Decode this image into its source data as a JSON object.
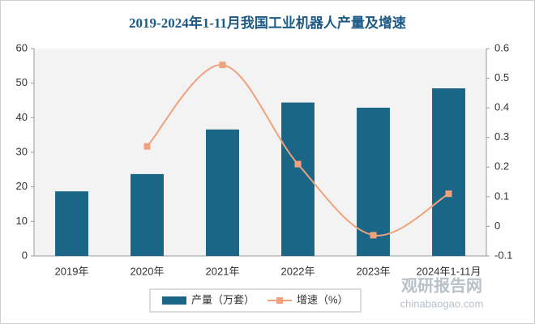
{
  "chart_data": {
    "type": "combo",
    "title": "2019-2024年1-11月我国工业机器人产量及增速",
    "categories": [
      "2019年",
      "2020年",
      "2021年",
      "2022年",
      "2023年",
      "2024年1-11月"
    ],
    "series": [
      {
        "name": "产量（万套）",
        "type": "bar",
        "color": "#1b6687",
        "values": [
          18.7,
          23.7,
          36.6,
          44.4,
          42.9,
          48.5
        ]
      },
      {
        "name": "增速（%）",
        "type": "line",
        "axis": "y2",
        "color": "#f0a27c",
        "values": [
          null,
          0.27,
          0.545,
          0.21,
          -0.03,
          0.11
        ]
      }
    ],
    "ylim": [
      0,
      60
    ],
    "yticks": [
      0,
      10,
      20,
      30,
      40,
      50,
      60
    ],
    "y2lim": [
      -0.1,
      0.6
    ],
    "y2ticks": [
      -0.1,
      0,
      0.1,
      0.2,
      0.3,
      0.4,
      0.5,
      0.6
    ],
    "legend": "bottom",
    "watermark": {
      "brand": "观研报告网",
      "url": "chinabaogao.com"
    }
  }
}
